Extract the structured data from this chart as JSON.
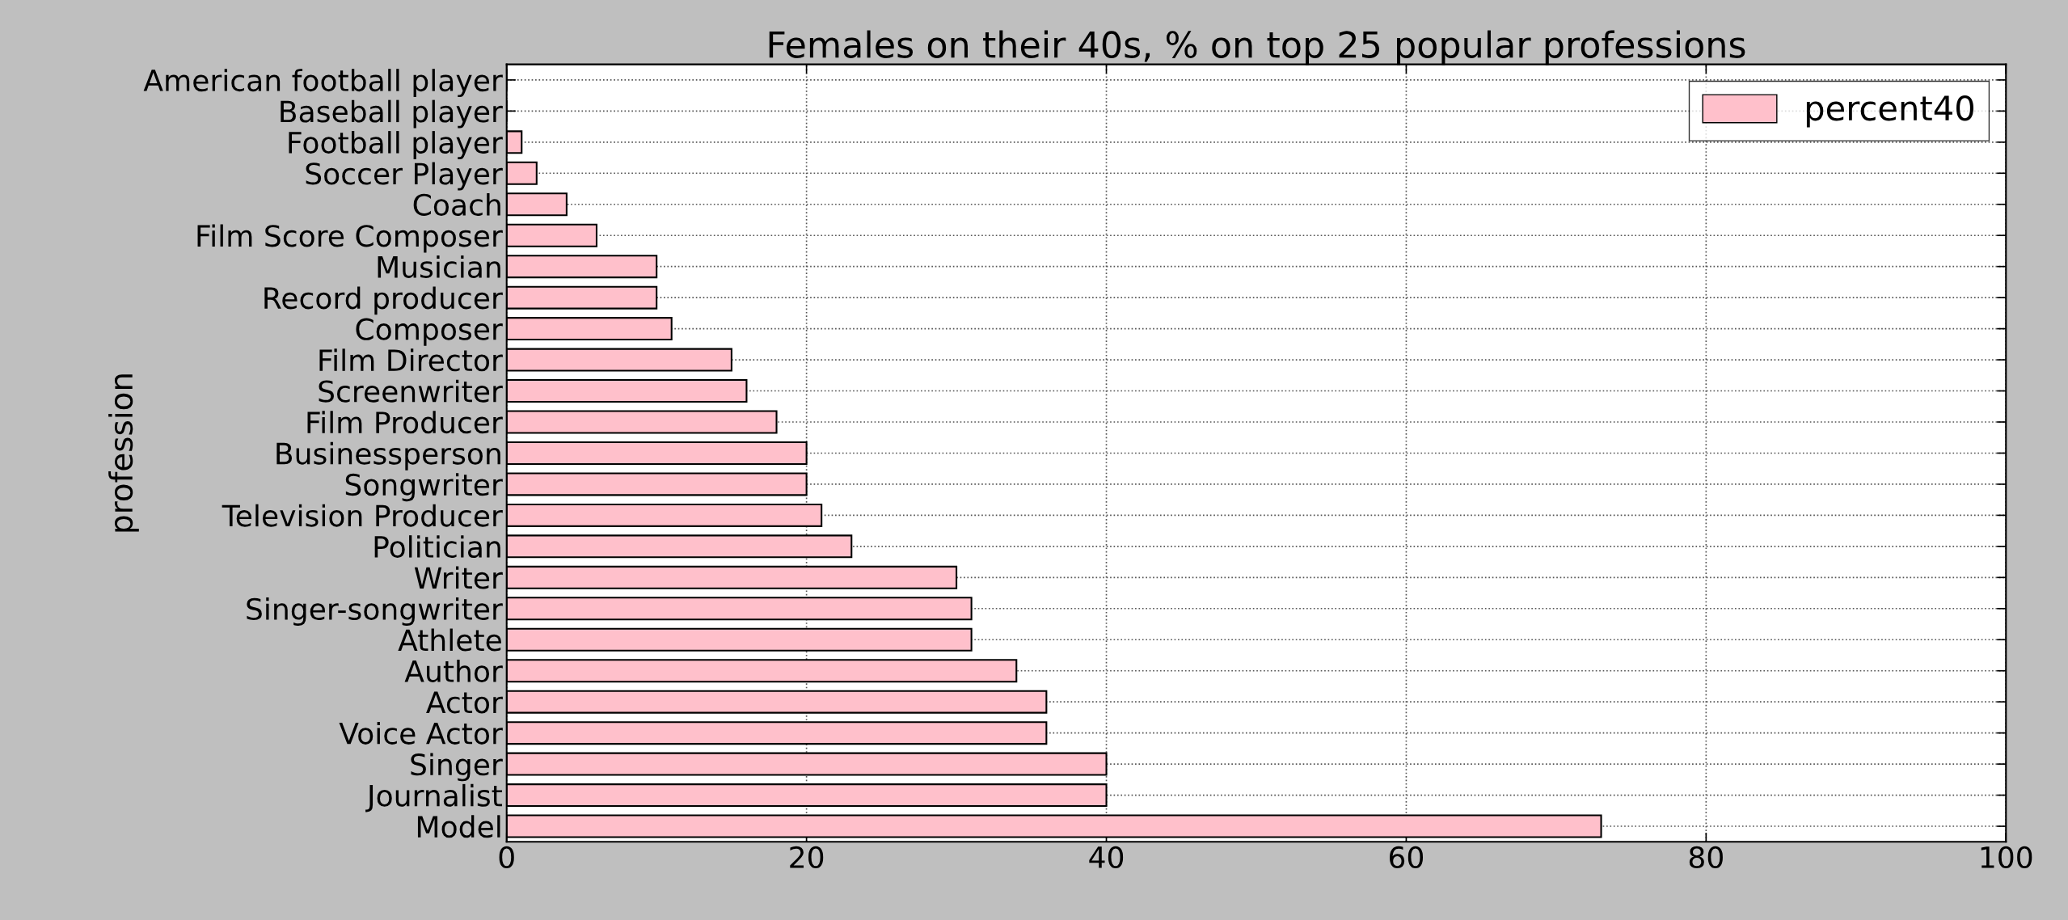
{
  "chart_data": {
    "type": "bar",
    "orientation": "horizontal",
    "title": "Females on their 40s, % on top 25 popular professions",
    "ylabel": "profession",
    "categories": [
      "American football player",
      "Baseball player",
      "Football player",
      "Soccer Player",
      "Coach",
      "Film Score Composer",
      "Musician",
      "Record producer",
      "Composer",
      "Film Director",
      "Screenwriter",
      "Film Producer",
      "Businessperson",
      "Songwriter",
      "Television Producer",
      "Politician",
      "Writer",
      "Singer-songwriter",
      "Athlete",
      "Author",
      "Actor",
      "Voice Actor",
      "Singer",
      "Journalist",
      "Model"
    ],
    "series": [
      {
        "name": "percent40",
        "color": "#ffc0cb",
        "values": [
          0,
          0,
          1,
          2,
          4,
          6,
          10,
          10,
          11,
          15,
          16,
          18,
          20,
          20,
          21,
          23,
          30,
          31,
          31,
          34,
          36,
          36,
          40,
          40,
          73
        ]
      }
    ],
    "xlim": [
      0,
      100
    ],
    "xticks": [
      0,
      20,
      40,
      60,
      80,
      100
    ],
    "grid": true,
    "legend": "top right"
  }
}
